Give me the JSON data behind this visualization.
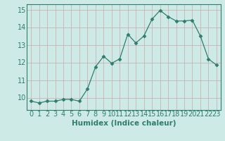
{
  "x": [
    0,
    1,
    2,
    3,
    4,
    5,
    6,
    7,
    8,
    9,
    10,
    11,
    12,
    13,
    14,
    15,
    16,
    17,
    18,
    19,
    20,
    21,
    22,
    23
  ],
  "y": [
    9.8,
    9.7,
    9.8,
    9.8,
    9.9,
    9.9,
    9.8,
    10.5,
    11.75,
    12.35,
    11.95,
    12.2,
    13.6,
    13.1,
    13.5,
    14.45,
    14.95,
    14.6,
    14.35,
    14.35,
    14.4,
    13.5,
    12.2,
    11.85
  ],
  "line_color": "#2e7d6e",
  "marker": "D",
  "marker_size": 2.5,
  "bg_color": "#ceeae6",
  "grid_major_color": "#c8a8a8",
  "grid_minor_color": "#ddd0d0",
  "xlabel": "Humidex (Indice chaleur)",
  "xlabel_fontsize": 7.5,
  "tick_fontsize": 7,
  "ylim": [
    9.3,
    15.3
  ],
  "yticks": [
    10,
    11,
    12,
    13,
    14,
    15
  ],
  "xticks": [
    0,
    1,
    2,
    3,
    4,
    5,
    6,
    7,
    8,
    9,
    10,
    11,
    12,
    13,
    14,
    15,
    16,
    17,
    18,
    19,
    20,
    21,
    22,
    23
  ]
}
